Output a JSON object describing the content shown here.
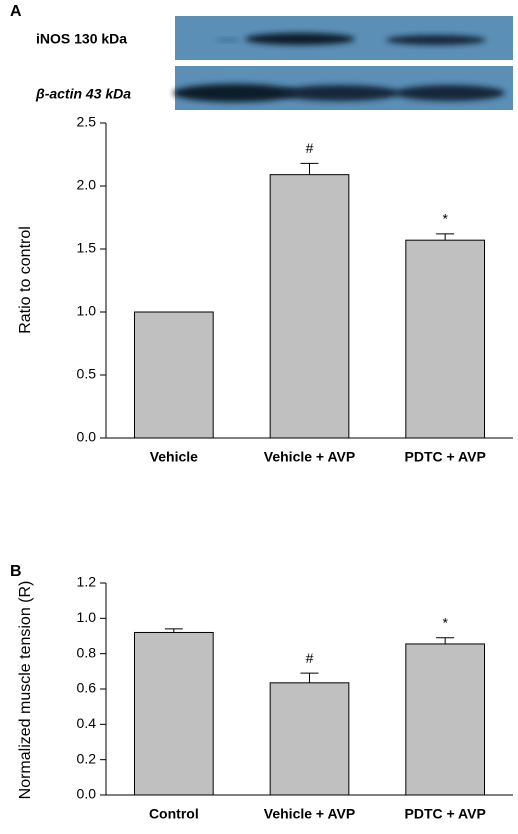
{
  "chart_data": [
    {
      "type": "bar",
      "panel_label": "A",
      "blot_labels": [
        "iNOS 130 kDa",
        "β-actin 43 kDa"
      ],
      "y_label": "Ratio to control",
      "categories": [
        "Vehicle",
        "Vehicle + AVP",
        "PDTC + AVP"
      ],
      "values": [
        1.0,
        2.09,
        1.57
      ],
      "errors": [
        0,
        0.09,
        0.05
      ],
      "value_annotations": [
        null,
        "#",
        "*"
      ],
      "color": "#c0c0c0",
      "ylim": [
        0,
        2.5
      ],
      "yticks": [
        {
          "value": 0,
          "label": "0.0"
        },
        0.5,
        {
          "value": 1,
          "label": "1.0"
        },
        1.5,
        {
          "value": 2,
          "label": "2.0"
        },
        2.5
      ]
    },
    {
      "type": "bar",
      "panel_label": "B",
      "y_label": "Normalized muscle tension (R)",
      "categories": [
        "Control",
        "Vehicle + AVP",
        "PDTC + AVP"
      ],
      "values": [
        0.92,
        0.635,
        0.855
      ],
      "errors": [
        0.02,
        0.055,
        0.035
      ],
      "value_annotations": [
        null,
        "#",
        "*"
      ],
      "color": "#c0c0c0",
      "ylim": [
        0,
        1.2
      ],
      "yticks": [
        {
          "value": 0,
          "label": "0.0"
        },
        0.2,
        0.4,
        0.6,
        0.8,
        {
          "value": 1,
          "label": "1.0"
        },
        1.2
      ]
    }
  ]
}
